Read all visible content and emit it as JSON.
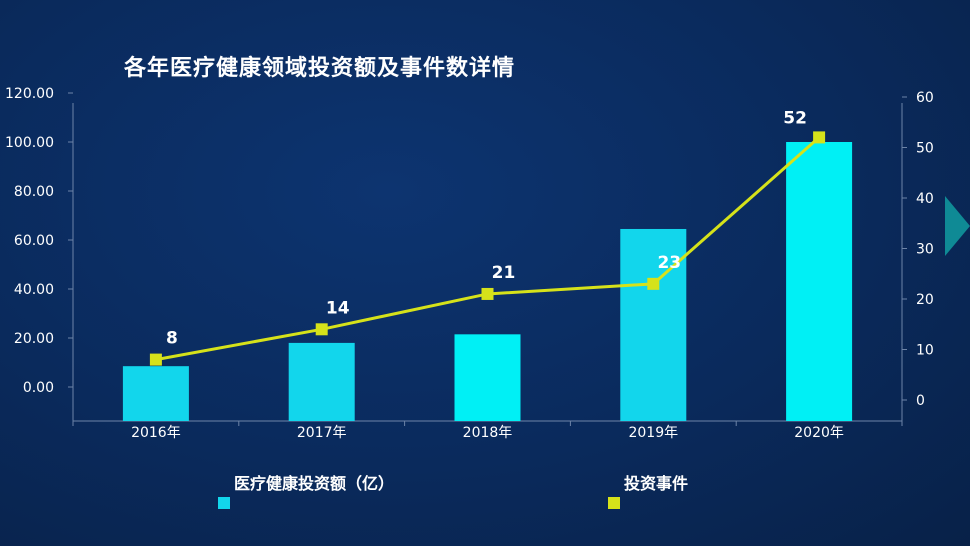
{
  "title": "各年医疗健康领域投资额及事件数详情",
  "colors": {
    "bar": "#00f0f5",
    "bar_dark": "#12d6ec",
    "line": "#d6e21a",
    "axis": "#6d84a8"
  },
  "chart_data": {
    "type": "bar+line",
    "categories": [
      "2016年",
      "2017年",
      "2018年",
      "2019年",
      "2020年"
    ],
    "series": [
      {
        "name": "医疗健康投资额（亿）",
        "type": "bar",
        "axis": "left",
        "values": [
          8.5,
          18,
          21.5,
          64.5,
          100
        ]
      },
      {
        "name": "投资事件",
        "type": "line",
        "axis": "right",
        "values": [
          8,
          14,
          21,
          23,
          52
        ]
      }
    ],
    "left_axis": {
      "ticks": [
        "120.00",
        "100.00",
        "80.00",
        "60.00",
        "40.00",
        "20.00",
        "0.00"
      ]
    },
    "right_axis": {
      "ticks": [
        "60",
        "50",
        "40",
        "30",
        "20",
        "10",
        "0"
      ]
    },
    "legend_position": "bottom"
  },
  "legend": {
    "bar_label": "医疗健康投资额（亿）",
    "line_label": "投资事件"
  }
}
